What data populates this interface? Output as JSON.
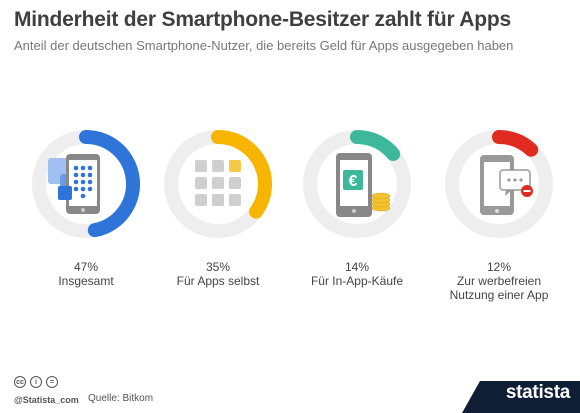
{
  "header": {
    "title": "Minderheit der Smartphone-Besitzer zahlt für Apps",
    "subtitle": "Anteil der deutschen Smartphone-Nutzer, die bereits Geld für Apps ausgegeben haben"
  },
  "chart_data": {
    "type": "donut",
    "title": "Minderheit der Smartphone-Besitzer zahlt für Apps",
    "subtitle": "Anteil der deutschen Smartphone-Nutzer, die bereits Geld für Apps ausgegeben haben",
    "categories": [
      "Insgesamt",
      "Für Apps selbst",
      "Für In-App-Käufe",
      "Zur werbefreien Nutzung einer App"
    ],
    "values": [
      47,
      35,
      14,
      12
    ],
    "value_labels": [
      "47%",
      "35%",
      "14%",
      "12%"
    ],
    "label_lines": [
      [
        "Insgesamt"
      ],
      [
        "Für Apps selbst"
      ],
      [
        "Für In-App-Käufe"
      ],
      [
        "Zur werbefreien",
        "Nutzung einer App"
      ]
    ],
    "unit": "%",
    "range": [
      0,
      100
    ],
    "colors": [
      "#2f74d8",
      "#f7b500",
      "#3db89a",
      "#e02b20"
    ],
    "track_color": "#eeeeee",
    "icons": [
      "phone-keypad-icon",
      "app-grid-icon",
      "euro-phone-coins-icon",
      "no-ads-phone-icon"
    ]
  },
  "footer": {
    "cc_icons": [
      "cc",
      "by",
      "nd"
    ],
    "handle": "@Statista_com",
    "source": "Quelle: Bitkom",
    "brand": "statista"
  }
}
